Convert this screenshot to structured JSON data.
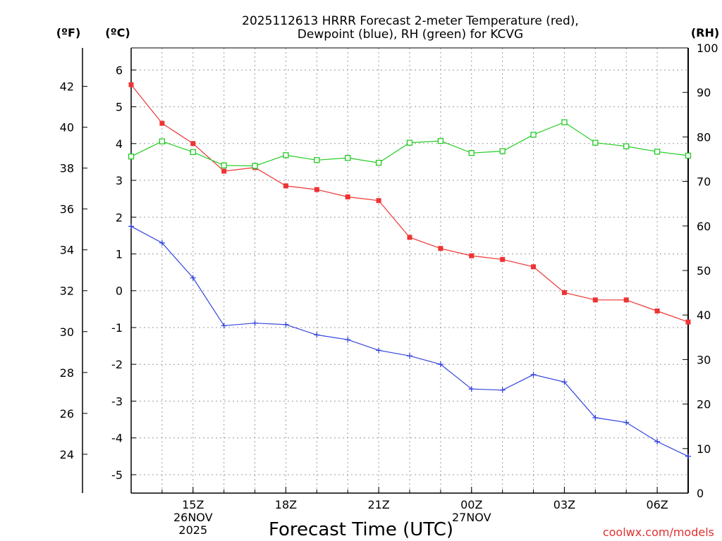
{
  "chart_data": {
    "type": "line",
    "title_line1": "2025112613 HRRR Forecast 2-meter Temperature (red),",
    "title_line2": "Dewpoint (blue), RH (green) for KCVG",
    "xlabel": "Forecast Time (UTC)",
    "credit": "coolwx.com/models",
    "units": {
      "fahrenheit": "(ºF)",
      "celsius": "(ºC)",
      "rh": "(RH)"
    },
    "x": [
      13,
      14,
      15,
      16,
      17,
      18,
      19,
      20,
      21,
      22,
      23,
      24,
      25,
      26,
      27,
      28,
      29,
      30,
      31
    ],
    "xlim": [
      13,
      31
    ],
    "x_ticks": [
      {
        "x": 15,
        "lines": [
          "15Z",
          "26NOV",
          "2025"
        ]
      },
      {
        "x": 18,
        "lines": [
          "18Z"
        ]
      },
      {
        "x": 21,
        "lines": [
          "21Z"
        ]
      },
      {
        "x": 24,
        "lines": [
          "00Z",
          "27NOV"
        ]
      },
      {
        "x": 27,
        "lines": [
          "03Z"
        ]
      },
      {
        "x": 30,
        "lines": [
          "06Z"
        ]
      }
    ],
    "ylim_celsius": [
      -5.5,
      6.6
    ],
    "yticks_celsius": [
      "6",
      "5",
      "4",
      "3",
      "2",
      "1",
      "0",
      "-1",
      "-2",
      "-3",
      "-4",
      "-5"
    ],
    "yticks_celsius_values": [
      6,
      5,
      4,
      3,
      2,
      1,
      0,
      -1,
      -2,
      -3,
      -4,
      -5
    ],
    "yticks_fahrenheit": [
      "42",
      "40",
      "38",
      "36",
      "34",
      "32",
      "30",
      "28",
      "26",
      "24"
    ],
    "yticks_fahrenheit_values": [
      42,
      40,
      38,
      36,
      34,
      32,
      30,
      28,
      26,
      24
    ],
    "ylim_rh": [
      0,
      100
    ],
    "yticks_rh": [
      "100",
      "90",
      "80",
      "70",
      "60",
      "50",
      "40",
      "30",
      "20",
      "10",
      "0"
    ],
    "yticks_rh_values": [
      100,
      90,
      80,
      70,
      60,
      50,
      40,
      30,
      20,
      10,
      0
    ],
    "series": [
      {
        "name": "2-meter Temperature",
        "axis": "celsius",
        "color": "#ee3333",
        "marker": "filled-square",
        "values": [
          5.6,
          4.55,
          4.0,
          3.25,
          3.35,
          2.85,
          2.75,
          2.55,
          2.45,
          1.45,
          1.15,
          0.95,
          0.85,
          0.65,
          -0.05,
          -0.25,
          -0.25,
          -0.55,
          -0.85
        ]
      },
      {
        "name": "Dewpoint",
        "axis": "celsius",
        "color": "#3344dd",
        "marker": "plus",
        "values": [
          1.75,
          1.3,
          0.35,
          -0.95,
          -0.88,
          -0.92,
          -1.2,
          -1.33,
          -1.62,
          -1.77,
          -2.0,
          -2.67,
          -2.7,
          -2.28,
          -2.48,
          -3.45,
          -3.58,
          -4.1,
          -4.5
        ]
      },
      {
        "name": "RH",
        "axis": "rh",
        "color": "#22cc22",
        "marker": "open-square",
        "values": [
          75.6,
          79.0,
          76.6,
          73.6,
          73.5,
          75.9,
          74.8,
          75.3,
          74.2,
          78.7,
          79.1,
          76.4,
          76.8,
          80.5,
          83.3,
          78.7,
          77.9,
          76.7,
          75.8
        ]
      }
    ]
  }
}
